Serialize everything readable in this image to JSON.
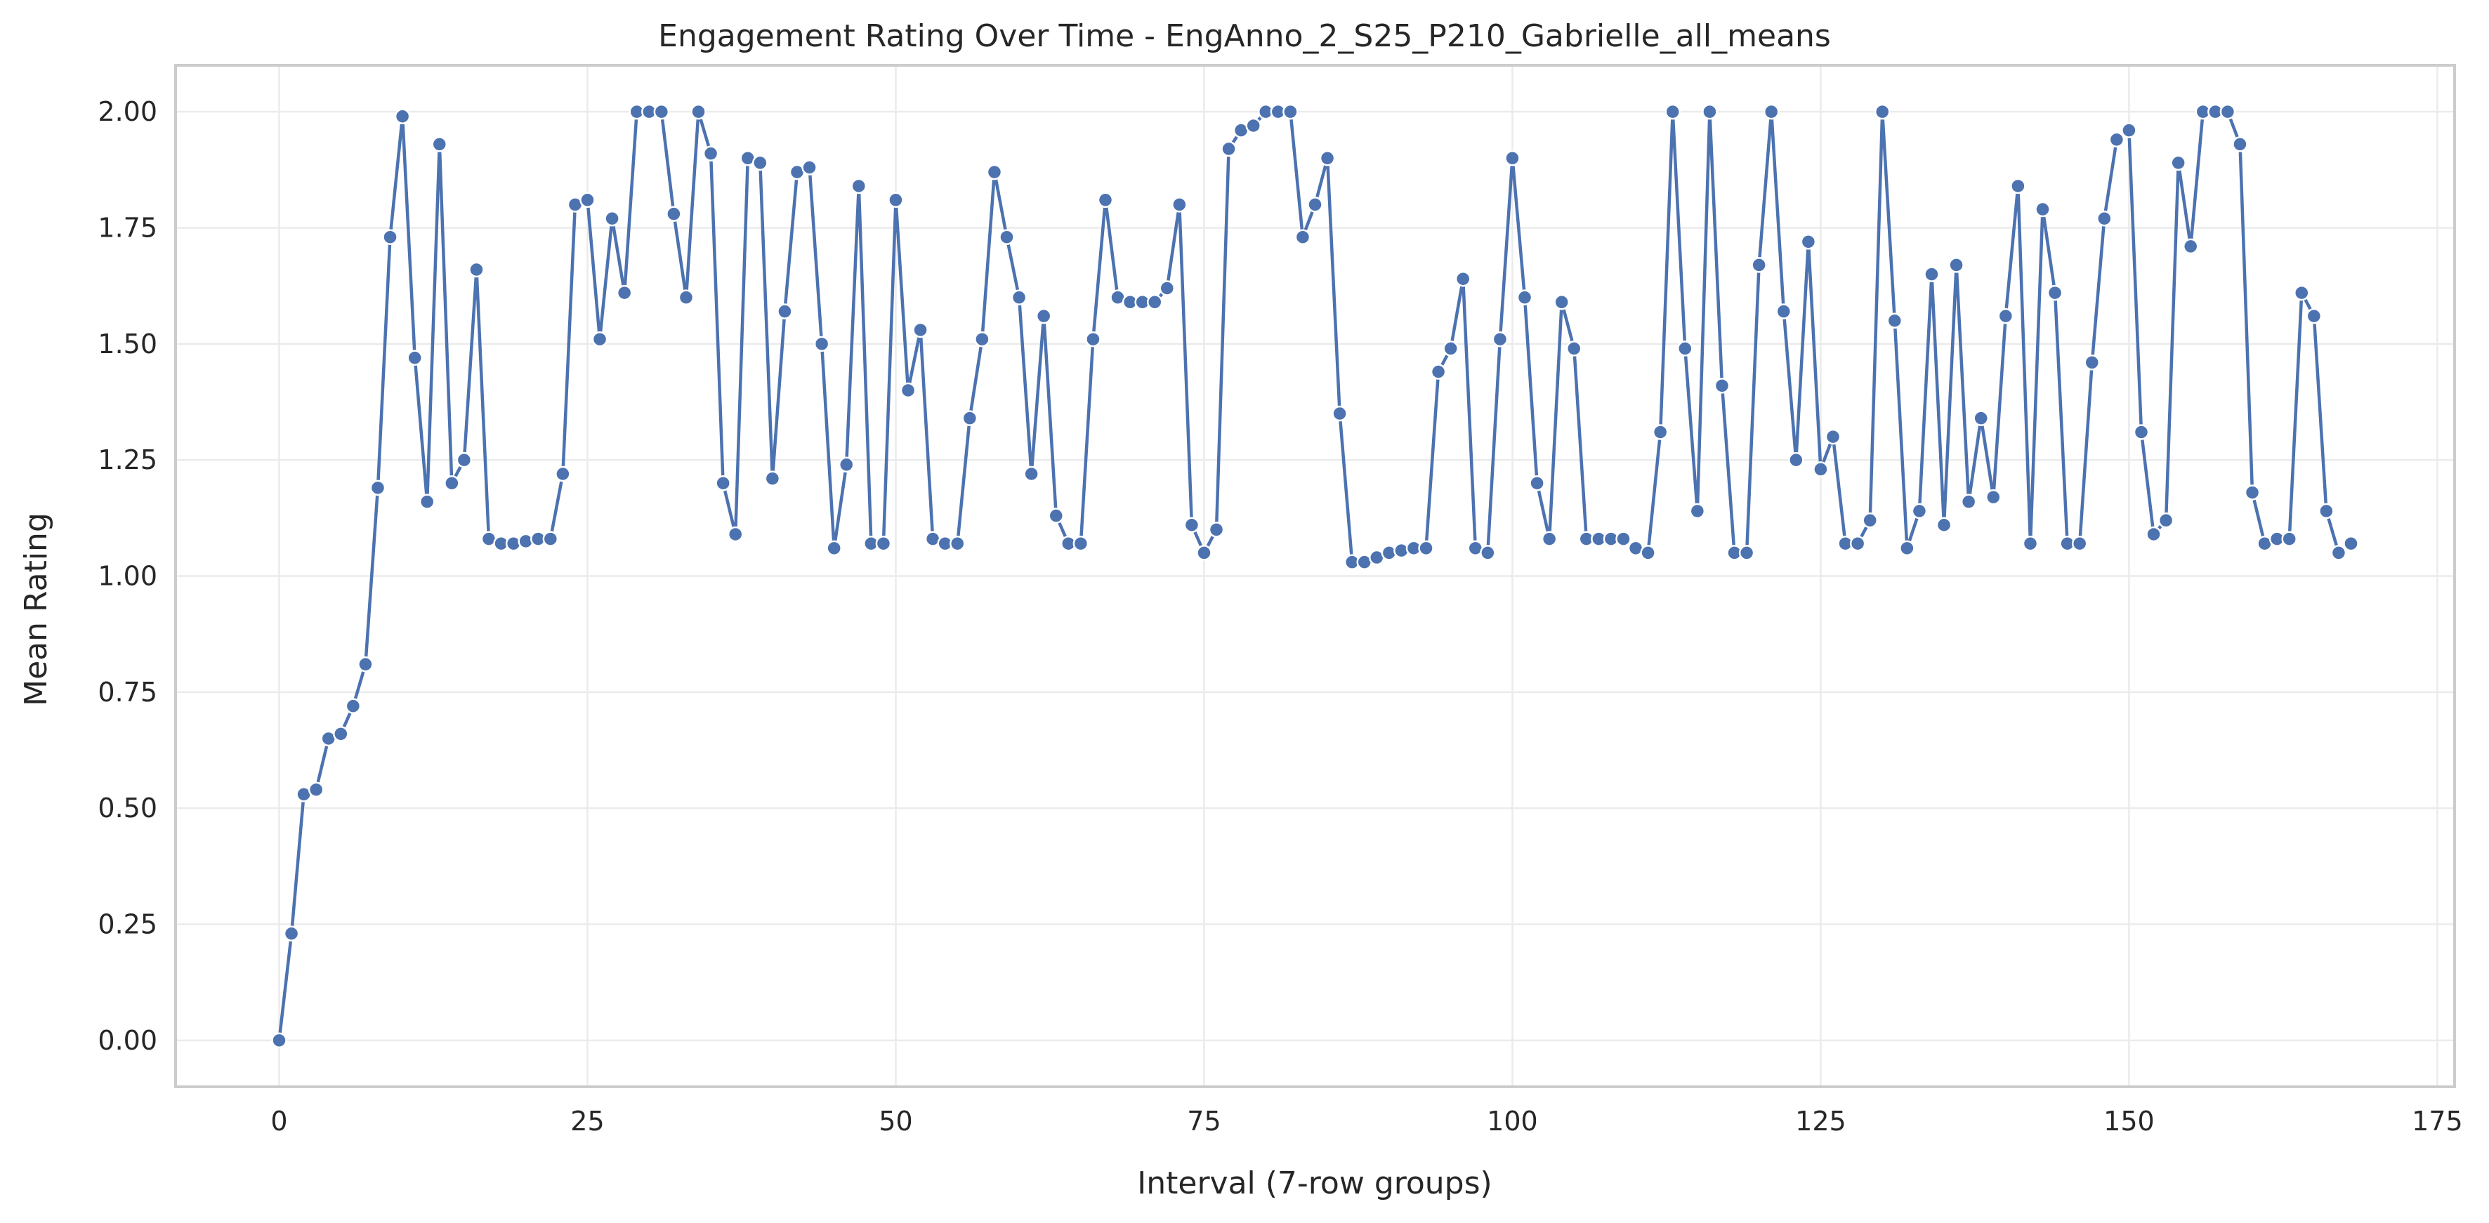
{
  "chart_data": {
    "type": "line",
    "title": "Engagement Rating Over Time - EngAnno_2_S25_P210_Gabrielle_all_means",
    "xlabel": "Interval (7-row groups)",
    "ylabel": "Mean Rating",
    "xlim": [
      -8.4,
      176.4
    ],
    "ylim": [
      -0.1,
      2.1
    ],
    "xticks": [
      0,
      25,
      50,
      75,
      100,
      125,
      150,
      175
    ],
    "xtick_labels": [
      "0",
      "25",
      "50",
      "75",
      "100",
      "125",
      "150",
      "175"
    ],
    "yticks": [
      0,
      0.25,
      0.5,
      0.75,
      1.0,
      1.25,
      1.5,
      1.75,
      2.0
    ],
    "ytick_labels": [
      "0.00",
      "0.25",
      "0.50",
      "0.75",
      "1.00",
      "1.25",
      "1.50",
      "1.75",
      "2.00"
    ],
    "grid": true,
    "legend": false,
    "series": [
      {
        "color": "#4c72b0",
        "marker": "circle",
        "x": [
          0,
          1,
          2,
          3,
          4,
          5,
          6,
          7,
          8,
          9,
          10,
          11,
          12,
          13,
          14,
          15,
          16,
          17,
          18,
          19,
          20,
          21,
          22,
          23,
          24,
          25,
          26,
          27,
          28,
          29,
          30,
          31,
          32,
          33,
          34,
          35,
          36,
          37,
          38,
          39,
          40,
          41,
          42,
          43,
          44,
          45,
          46,
          47,
          48,
          49,
          50,
          51,
          52,
          53,
          54,
          55,
          56,
          57,
          58,
          59,
          60,
          61,
          62,
          63,
          64,
          65,
          66,
          67,
          68,
          69,
          70,
          71,
          72,
          73,
          74,
          75,
          76,
          77,
          78,
          79,
          80,
          81,
          82,
          83,
          84,
          85,
          86,
          87,
          88,
          89,
          90,
          91,
          92,
          93,
          94,
          95,
          96,
          97,
          98,
          99,
          100,
          101,
          102,
          103,
          104,
          105,
          106,
          107,
          108,
          109,
          110,
          111,
          112,
          113,
          114,
          115,
          116,
          117,
          118,
          119,
          120,
          121,
          122,
          123,
          124,
          125,
          126,
          127,
          128,
          129,
          130,
          131,
          132,
          133,
          134,
          135,
          136,
          137,
          138,
          139,
          140,
          141,
          142,
          143,
          144,
          145,
          146,
          147,
          148,
          149,
          150,
          151,
          152,
          153,
          154,
          155,
          156,
          157,
          158,
          159,
          160,
          161,
          162,
          163,
          164,
          165,
          166,
          167,
          168
        ],
        "values": [
          0.0,
          0.23,
          0.53,
          0.54,
          0.65,
          0.66,
          0.72,
          0.81,
          1.19,
          1.73,
          1.99,
          1.47,
          1.16,
          1.93,
          1.2,
          1.25,
          1.66,
          1.08,
          1.07,
          1.07,
          1.075,
          1.08,
          1.08,
          1.22,
          1.8,
          1.81,
          1.51,
          1.77,
          1.61,
          2.0,
          2.0,
          2.0,
          1.78,
          1.6,
          2.0,
          1.91,
          1.2,
          1.09,
          1.9,
          1.89,
          1.21,
          1.57,
          1.87,
          1.88,
          1.5,
          1.06,
          1.24,
          1.84,
          1.07,
          1.07,
          1.81,
          1.4,
          1.53,
          1.08,
          1.07,
          1.07,
          1.34,
          1.51,
          1.87,
          1.73,
          1.6,
          1.22,
          1.56,
          1.13,
          1.07,
          1.07,
          1.51,
          1.81,
          1.6,
          1.59,
          1.59,
          1.59,
          1.62,
          1.8,
          1.11,
          1.05,
          1.1,
          1.92,
          1.96,
          1.97,
          2.0,
          2.0,
          2.0,
          1.73,
          1.8,
          1.9,
          1.35,
          1.03,
          1.03,
          1.04,
          1.05,
          1.055,
          1.06,
          1.06,
          1.44,
          1.49,
          1.64,
          1.06,
          1.05,
          1.51,
          1.9,
          1.6,
          1.2,
          1.08,
          1.59,
          1.49,
          1.08,
          1.08,
          1.08,
          1.08,
          1.06,
          1.05,
          1.31,
          2.0,
          1.49,
          1.14,
          2.0,
          1.41,
          1.05,
          1.05,
          1.67,
          2.0,
          1.57,
          1.25,
          1.72,
          1.23,
          1.3,
          1.07,
          1.07,
          1.12,
          2.0,
          1.55,
          1.06,
          1.14,
          1.65,
          1.11,
          1.67,
          1.16,
          1.34,
          1.17,
          1.56,
          1.84,
          1.07,
          1.79,
          1.61,
          1.07,
          1.07,
          1.46,
          1.77,
          1.94,
          1.96,
          1.31,
          1.09,
          1.12,
          1.89,
          1.71,
          2.0,
          2.0,
          2.0,
          1.93,
          1.18,
          1.07,
          1.08,
          1.08,
          1.61,
          1.56,
          1.14,
          1.05,
          1.07
        ]
      }
    ]
  }
}
